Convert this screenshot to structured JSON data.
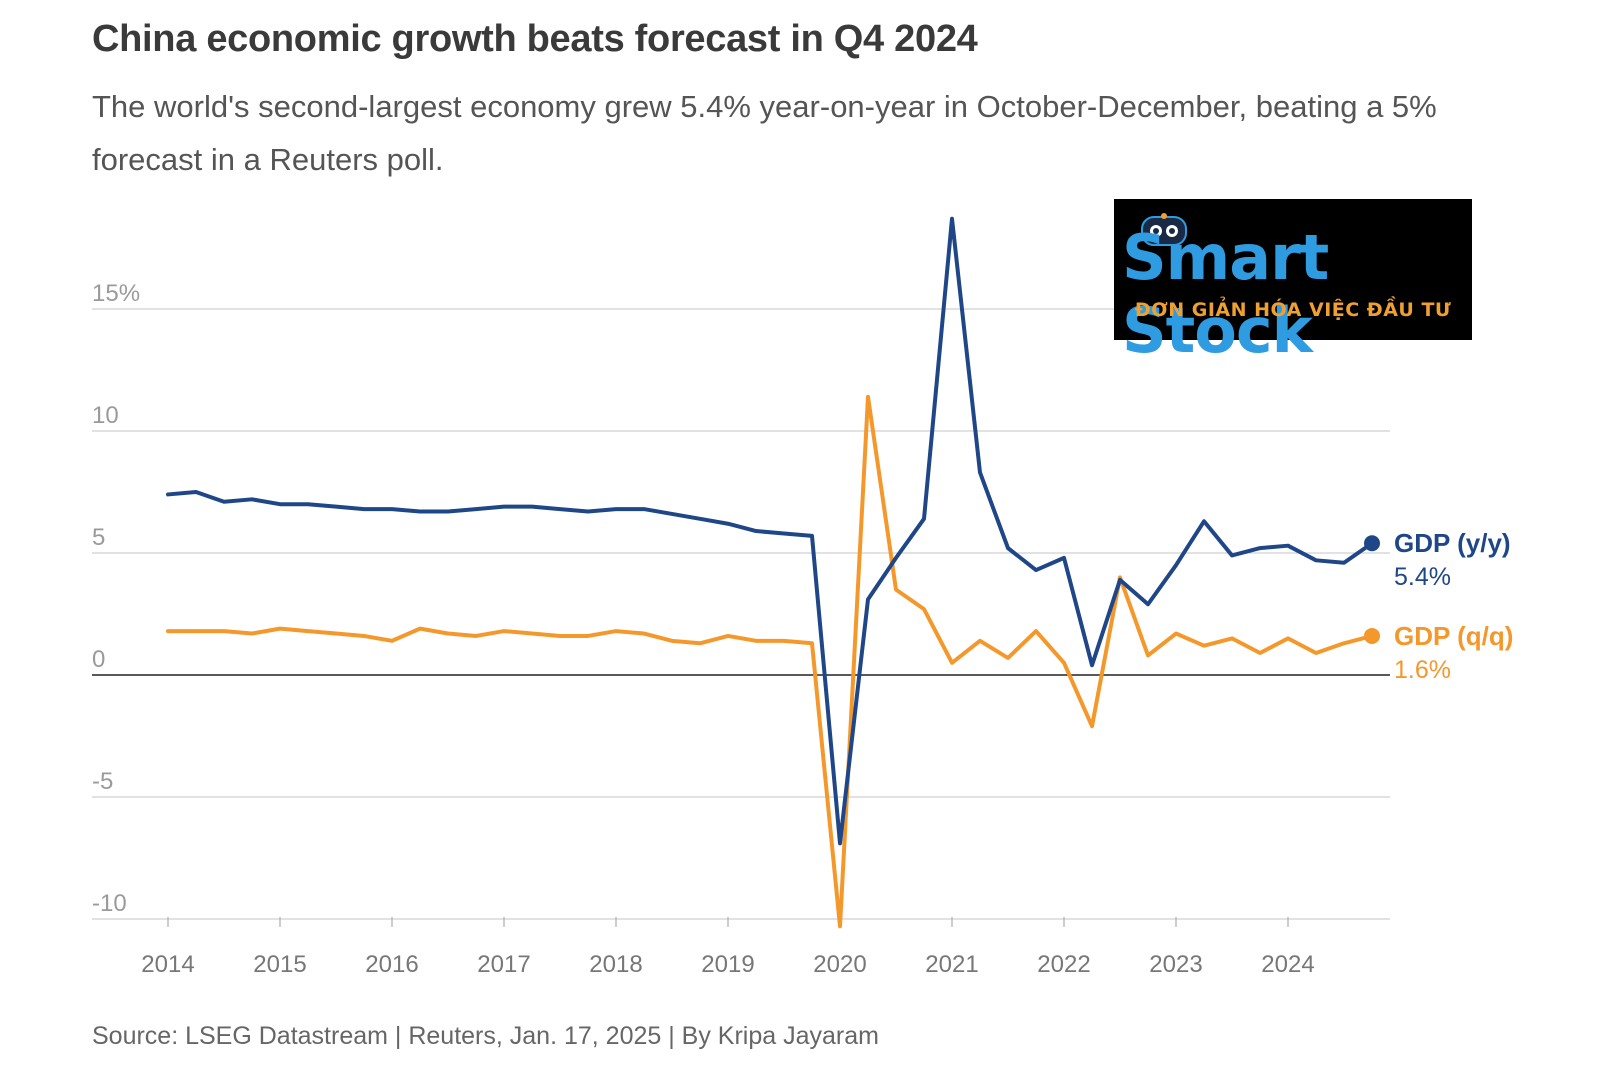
{
  "header": {
    "title": "China economic growth beats forecast in Q4 2024",
    "subtitle": "The world's second-largest economy grew 5.4% year-on-year in October-December, beating a 5% forecast in a Reuters poll."
  },
  "footer": {
    "source": "Source: LSEG Datastream | Reuters, Jan. 17, 2025 | By Kripa Jayaram"
  },
  "logo": {
    "brand": "Smart Stock",
    "tagline": "ĐƠN GIẢN HÓA VIỆC ĐẦU TƯ"
  },
  "colors": {
    "yy": "#1f4788",
    "qq": "#f5982c",
    "grid": "#d0d0d0",
    "zero": "#222222"
  },
  "chart_data": {
    "type": "line",
    "title": "China economic growth beats forecast in Q4 2024",
    "xlabel": "",
    "ylabel": "",
    "ylim": [
      -10.7,
      18
    ],
    "grid": true,
    "y_ticks": [
      {
        "value": 15,
        "label": "15%"
      },
      {
        "value": 10,
        "label": "10"
      },
      {
        "value": 5,
        "label": "5"
      },
      {
        "value": 0,
        "label": "0"
      },
      {
        "value": -5,
        "label": "-5"
      },
      {
        "value": -10,
        "label": "-10"
      }
    ],
    "x_ticks": [
      "2014",
      "2015",
      "2016",
      "2017",
      "2018",
      "2019",
      "2020",
      "2021",
      "2022",
      "2023",
      "2024"
    ],
    "x_start_year": 2014,
    "x": [
      "2014Q1",
      "2014Q2",
      "2014Q3",
      "2014Q4",
      "2015Q1",
      "2015Q2",
      "2015Q3",
      "2015Q4",
      "2016Q1",
      "2016Q2",
      "2016Q3",
      "2016Q4",
      "2017Q1",
      "2017Q2",
      "2017Q3",
      "2017Q4",
      "2018Q1",
      "2018Q2",
      "2018Q3",
      "2018Q4",
      "2019Q1",
      "2019Q2",
      "2019Q3",
      "2019Q4",
      "2020Q1",
      "2020Q2",
      "2020Q3",
      "2020Q4",
      "2021Q1",
      "2021Q2",
      "2021Q3",
      "2021Q4",
      "2022Q1",
      "2022Q2",
      "2022Q3",
      "2022Q4",
      "2023Q1",
      "2023Q2",
      "2023Q3",
      "2023Q4",
      "2024Q1",
      "2024Q2",
      "2024Q3",
      "2024Q4"
    ],
    "series": [
      {
        "name": "GDP (y/y)",
        "end_label": "5.4%",
        "color": "#1f4788",
        "values": [
          7.4,
          7.5,
          7.1,
          7.2,
          7.0,
          7.0,
          6.9,
          6.8,
          6.8,
          6.7,
          6.7,
          6.8,
          6.9,
          6.9,
          6.8,
          6.7,
          6.8,
          6.8,
          6.6,
          6.4,
          6.2,
          5.9,
          5.8,
          5.7,
          -6.9,
          3.1,
          4.8,
          6.4,
          18.7,
          8.3,
          5.2,
          4.3,
          4.8,
          0.4,
          3.9,
          2.9,
          4.5,
          6.3,
          4.9,
          5.2,
          5.3,
          4.7,
          4.6,
          5.4
        ]
      },
      {
        "name": "GDP (q/q)",
        "end_label": "1.6%",
        "color": "#f5982c",
        "values": [
          1.8,
          1.8,
          1.8,
          1.7,
          1.9,
          1.8,
          1.7,
          1.6,
          1.4,
          1.9,
          1.7,
          1.6,
          1.8,
          1.7,
          1.6,
          1.6,
          1.8,
          1.7,
          1.4,
          1.3,
          1.6,
          1.4,
          1.4,
          1.3,
          -10.3,
          11.4,
          3.5,
          2.7,
          0.5,
          1.4,
          0.7,
          1.8,
          0.5,
          -2.1,
          4.0,
          0.8,
          1.7,
          1.2,
          1.5,
          0.9,
          1.5,
          0.9,
          1.3,
          1.6
        ]
      }
    ]
  }
}
